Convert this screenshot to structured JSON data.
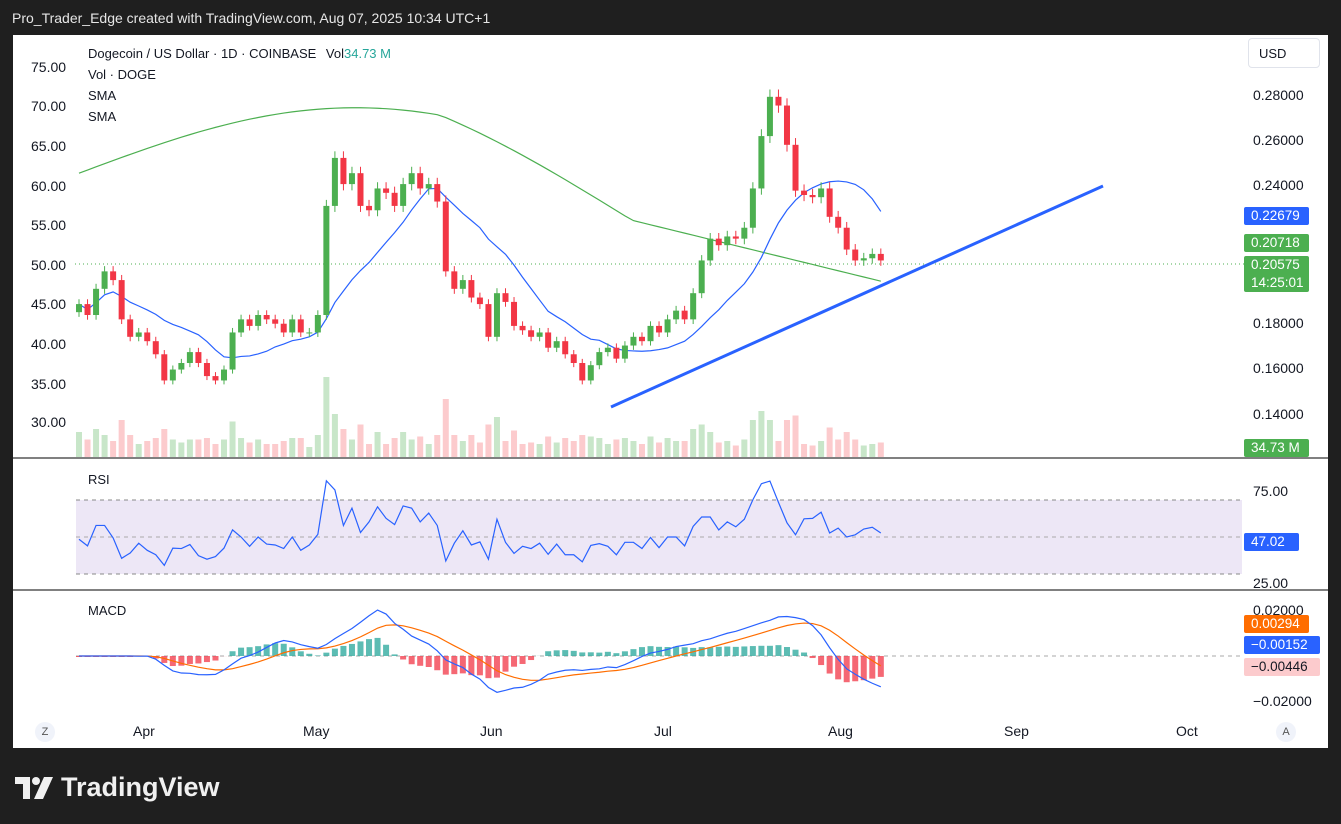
{
  "header": {
    "text": "Pro_Trader_Edge created with TradingView.com, Aug 07, 2025 10:34 UTC+1"
  },
  "legend": {
    "title": "Dogecoin / US Dollar · 1D · COINBASE",
    "vol_label": "Vol",
    "vol_value": "34.73 M",
    "line2": "Vol · DOGE",
    "line3": "SMA",
    "line4": "SMA"
  },
  "currency_button": "USD",
  "left_axis": [
    "75.00",
    "70.00",
    "65.00",
    "60.00",
    "55.00",
    "50.00",
    "45.00",
    "40.00",
    "35.00",
    "30.00"
  ],
  "right_axis": [
    "0.28000",
    "0.26000",
    "0.24000",
    "0.18000",
    "0.16000",
    "0.14000"
  ],
  "badges": {
    "sma_fast": "0.22679",
    "sma_slow": "0.20718",
    "price": "0.20575",
    "countdown": "14:25:01",
    "volume": "34.73 M",
    "rsi": "47.02",
    "macd_signal": "0.00294",
    "macd_line": "−0.00152",
    "macd_hist": "−0.00446"
  },
  "rsi": {
    "title": "RSI",
    "axis": [
      "75.00",
      "25.00"
    ]
  },
  "macd": {
    "title": "MACD",
    "axis": [
      "0.02000",
      "−0.02000"
    ]
  },
  "x_axis": [
    "Apr",
    "May",
    "Jun",
    "Jul",
    "Aug",
    "Sep",
    "Oct"
  ],
  "corners": {
    "left": "Z",
    "right": "A"
  },
  "brand": "TradingView",
  "colors": {
    "up": "#26a69a",
    "up_candle": "#4caf50",
    "down": "#f23645",
    "sma_fast": "#2962ff",
    "sma_slow": "#4caf50",
    "trendline": "#2962ff",
    "macd_signal": "#ff6d00"
  },
  "chart_data": {
    "type": "candlestick",
    "symbol": "DOGE/USD",
    "timeframe": "1D",
    "close_levels": [
      0.185,
      0.18,
      0.192,
      0.2,
      0.196,
      0.178,
      0.17,
      0.172,
      0.168,
      0.162,
      0.15,
      0.155,
      0.158,
      0.163,
      0.158,
      0.152,
      0.15,
      0.155,
      0.172,
      0.178,
      0.175,
      0.18,
      0.178,
      0.176,
      0.172,
      0.178,
      0.172,
      0.172,
      0.18,
      0.23,
      0.252,
      0.24,
      0.245,
      0.23,
      0.228,
      0.238,
      0.236,
      0.23,
      0.24,
      0.245,
      0.238,
      0.24,
      0.232,
      0.2,
      0.192,
      0.196,
      0.188,
      0.185,
      0.17,
      0.19,
      0.186,
      0.175,
      0.173,
      0.17,
      0.172,
      0.165,
      0.168,
      0.162,
      0.158,
      0.15,
      0.157,
      0.163,
      0.165,
      0.16,
      0.166,
      0.17,
      0.168,
      0.175,
      0.172,
      0.178,
      0.182,
      0.178,
      0.19,
      0.205,
      0.215,
      0.212,
      0.216,
      0.215,
      0.22,
      0.238,
      0.262,
      0.28,
      0.276,
      0.258,
      0.237,
      0.235,
      0.234,
      0.238,
      0.225,
      0.22,
      0.21,
      0.205,
      0.206,
      0.208,
      0.205
    ],
    "sma_slow_label": "SMA",
    "sma_fast_label": "SMA",
    "trendline": {
      "start_price": 0.142,
      "end_price": 0.24
    },
    "rsi_last": 47.02,
    "macd_last": {
      "macd": -0.00152,
      "signal": 0.00294,
      "hist": -0.00446
    }
  }
}
